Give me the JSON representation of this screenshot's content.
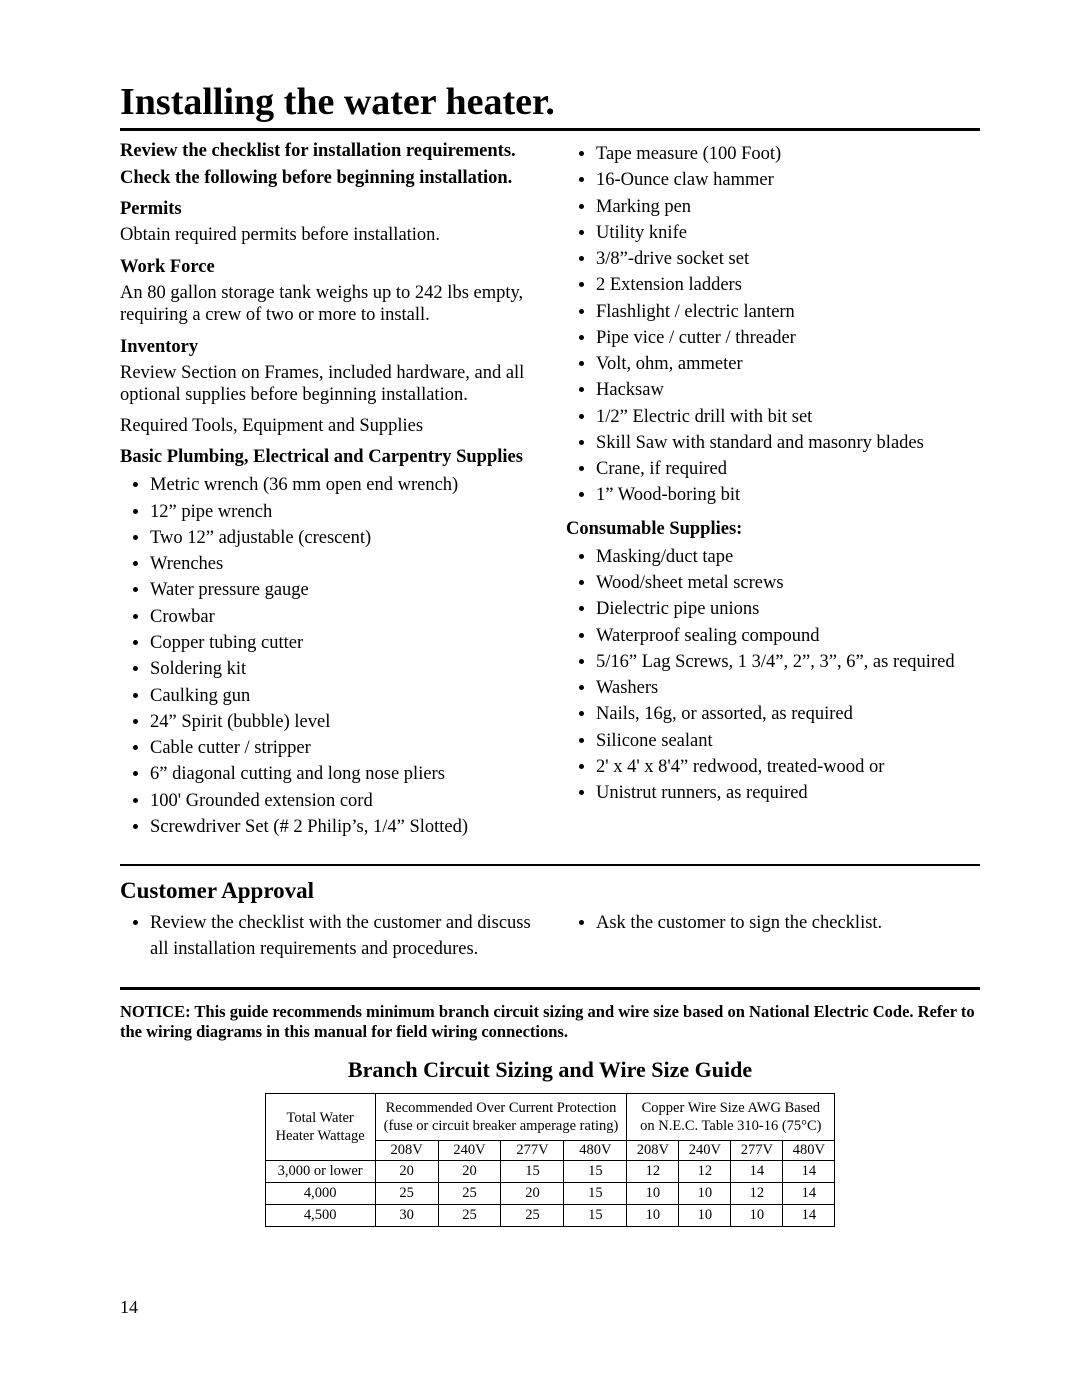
{
  "title": "Installing the water heater.",
  "intro": [
    "Review the checklist for installation requirements.",
    "Check the following before beginning installation."
  ],
  "sections_left": [
    {
      "head": "Permits",
      "body": "Obtain required permits before installation."
    },
    {
      "head": "Work Force",
      "body": "An 80 gallon storage tank weighs up to 242 lbs empty, requiring a crew of two or more to install."
    },
    {
      "head": "Inventory",
      "body": "Review Section on Frames, included hardware, and all optional supplies before beginning installation."
    }
  ],
  "required_line": "Required Tools, Equipment and Supplies",
  "basic_supplies_head": "Basic Plumbing, Electrical and Carpentry Supplies",
  "tools_left": [
    "Metric wrench (36 mm open end wrench)",
    "12” pipe wrench",
    "Two 12” adjustable (crescent)",
    "Wrenches",
    "Water pressure gauge",
    "Crowbar",
    "Copper tubing cutter",
    "Soldering kit",
    "Caulking gun",
    "24” Spirit (bubble) level",
    "Cable cutter / stripper",
    "6” diagonal cutting and long nose pliers",
    "100' Grounded extension cord",
    "Screwdriver Set (# 2 Philip’s, 1/4” Slotted)"
  ],
  "tools_right": [
    "Tape measure (100 Foot)",
    "16-Ounce claw hammer",
    "Marking pen",
    "Utility knife",
    "3/8”-drive socket set",
    "2 Extension ladders",
    "Flashlight / electric lantern",
    "Pipe vice / cutter / threader",
    "Volt, ohm, ammeter",
    "Hacksaw",
    "1/2” Electric drill with bit set",
    "Skill Saw with standard and masonry blades",
    "Crane, if required",
    "1” Wood-boring bit"
  ],
  "consumable_head": "Consumable Supplies:",
  "consumables": [
    "Masking/duct tape",
    "Wood/sheet metal screws",
    "Dielectric pipe unions",
    "Waterproof sealing compound",
    "5/16” Lag Screws, 1 3/4”, 2”, 3”, 6”, as required",
    "Washers",
    "Nails, 16g, or assorted, as required",
    "Silicone sealant",
    "2' x 4' x 8'4” redwood, treated-wood or",
    "Unistrut runners, as required"
  ],
  "approval": {
    "title": "Customer Approval",
    "left": "Review the checklist with the customer and discuss all installation requirements and procedures.",
    "right": "Ask the customer to sign the checklist."
  },
  "notice": "NOTICE: This guide recommends minimum branch circuit sizing and wire size based on National Electric Code. Refer to the wiring diagrams in this manual for field wiring connections.",
  "table": {
    "title": "Branch Circuit Sizing and Wire Size Guide",
    "headers": {
      "col1": "Total Water\nHeater Wattage",
      "col2": "Recommended Over Current Protection\n(fuse or circuit breaker amperage rating)",
      "col3": "Copper Wire Size AWG Based\non N.E.C. Table 310-16 (75°C)"
    },
    "volt_labels": [
      "208V",
      "240V",
      "277V",
      "480V",
      "208V",
      "240V",
      "277V",
      "480V"
    ],
    "rows": [
      {
        "w": "3,000 or lower",
        "v": [
          "20",
          "20",
          "15",
          "15",
          "12",
          "12",
          "14",
          "14"
        ]
      },
      {
        "w": "4,000",
        "v": [
          "25",
          "25",
          "20",
          "15",
          "10",
          "10",
          "12",
          "14"
        ]
      },
      {
        "w": "4,500",
        "v": [
          "30",
          "25",
          "25",
          "15",
          "10",
          "10",
          "10",
          "14"
        ]
      }
    ]
  },
  "page_number": "14"
}
